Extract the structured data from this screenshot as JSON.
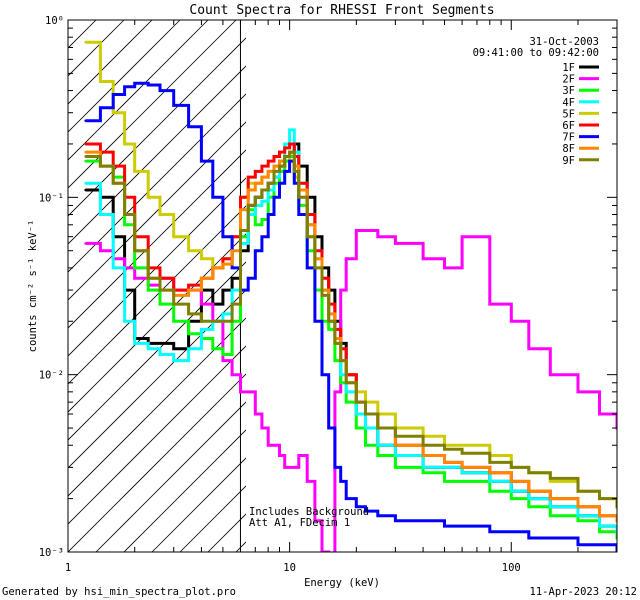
{
  "chart_data": {
    "type": "line",
    "title": "Count Spectra for RHESSI Front Segments",
    "xlabel": "Energy (keV)",
    "ylabel": "counts cm⁻² s⁻¹ keV⁻¹",
    "x_scale": "log",
    "y_scale": "log",
    "xlim": [
      1,
      300
    ],
    "ylim": [
      0.001,
      1.0
    ],
    "x_tick_labels": [
      {
        "value": 1,
        "label": "1"
      },
      {
        "value": 10,
        "label": "10"
      },
      {
        "value": 100,
        "label": "100"
      }
    ],
    "y_tick_labels": [
      {
        "value": 1,
        "label": "10⁰"
      },
      {
        "value": 0.1,
        "label": "10⁻¹"
      },
      {
        "value": 0.01,
        "label": "10⁻²"
      },
      {
        "value": 0.001,
        "label": "10⁻³"
      }
    ],
    "date": "31-Oct-2003",
    "time_range": "09:41:00 to 09:42:00",
    "annotation_lines": [
      "Includes Background",
      "Att A1, FDecim 1"
    ],
    "hatched_region_max_energy": 6,
    "legend_position": "top-right",
    "series": [
      {
        "name": "1F",
        "color": "#000000",
        "x": [
          1.2,
          1.4,
          1.6,
          1.8,
          2.0,
          2.3,
          2.6,
          3.0,
          3.5,
          4.0,
          4.5,
          5.0,
          5.5,
          6.0,
          6.5,
          7.0,
          7.5,
          8.0,
          8.5,
          9.0,
          9.5,
          10.0,
          10.5,
          11.0,
          12.0,
          13.0,
          14.0,
          15.0,
          16.0,
          17.0,
          18.0,
          20.0,
          22.0,
          25.0,
          30.0,
          40.0,
          50.0,
          60.0,
          80.0,
          100.0,
          120.0,
          150.0,
          200.0,
          250.0,
          300.0
        ],
        "values": [
          0.11,
          0.1,
          0.06,
          0.03,
          0.016,
          0.015,
          0.015,
          0.014,
          0.02,
          0.03,
          0.025,
          0.03,
          0.035,
          0.05,
          0.09,
          0.1,
          0.11,
          0.12,
          0.13,
          0.15,
          0.17,
          0.18,
          0.2,
          0.15,
          0.1,
          0.06,
          0.04,
          0.03,
          0.02,
          0.015,
          0.01,
          0.006,
          0.005,
          0.004,
          0.0035,
          0.003,
          0.003,
          0.0028,
          0.0025,
          0.0022,
          0.002,
          0.0018,
          0.0016,
          0.0014,
          0.0013
        ]
      },
      {
        "name": "2F",
        "color": "#ff00ff",
        "x": [
          1.2,
          1.4,
          1.6,
          1.8,
          2.0,
          2.3,
          2.6,
          3.0,
          3.5,
          4.0,
          4.5,
          5.0,
          5.5,
          6.0,
          6.5,
          7.0,
          7.5,
          8.0,
          8.5,
          9.0,
          9.5,
          10.0,
          10.5,
          11.0,
          12.0,
          13.0,
          14.0,
          15.0,
          16.0,
          17.0,
          18.0,
          20.0,
          22.0,
          25.0,
          30.0,
          40.0,
          50.0,
          60.0,
          80.0,
          100.0,
          120.0,
          150.0,
          200.0,
          250.0,
          300.0
        ],
        "values": [
          0.055,
          0.05,
          0.045,
          0.04,
          0.035,
          0.032,
          0.035,
          0.03,
          0.03,
          0.025,
          0.02,
          0.012,
          0.01,
          0.008,
          0.008,
          0.006,
          0.005,
          0.004,
          0.004,
          0.0035,
          0.003,
          0.003,
          0.003,
          0.0035,
          0.0025,
          0.0015,
          0.001,
          0.0009,
          0.008,
          0.03,
          0.045,
          0.065,
          0.065,
          0.06,
          0.055,
          0.045,
          0.04,
          0.06,
          0.025,
          0.02,
          0.014,
          0.01,
          0.008,
          0.006,
          0.005
        ]
      },
      {
        "name": "3F",
        "color": "#00ff00",
        "x": [
          1.2,
          1.4,
          1.6,
          1.8,
          2.0,
          2.3,
          2.6,
          3.0,
          3.5,
          4.0,
          4.5,
          5.0,
          5.5,
          6.0,
          6.5,
          7.0,
          7.5,
          8.0,
          8.5,
          9.0,
          9.5,
          10.0,
          10.5,
          11.0,
          12.0,
          13.0,
          14.0,
          15.0,
          16.0,
          17.0,
          18.0,
          20.0,
          22.0,
          25.0,
          30.0,
          40.0,
          50.0,
          60.0,
          80.0,
          100.0,
          120.0,
          150.0,
          200.0,
          250.0,
          300.0
        ],
        "values": [
          0.16,
          0.15,
          0.13,
          0.07,
          0.04,
          0.03,
          0.025,
          0.02,
          0.017,
          0.016,
          0.014,
          0.013,
          0.02,
          0.06,
          0.085,
          0.07,
          0.075,
          0.1,
          0.12,
          0.14,
          0.16,
          0.17,
          0.13,
          0.09,
          0.05,
          0.03,
          0.02,
          0.018,
          0.012,
          0.009,
          0.007,
          0.005,
          0.004,
          0.0035,
          0.003,
          0.0028,
          0.0025,
          0.0025,
          0.0022,
          0.002,
          0.0018,
          0.0016,
          0.0015,
          0.0013,
          0.0012
        ]
      },
      {
        "name": "4F",
        "color": "#00ffff",
        "x": [
          1.2,
          1.4,
          1.6,
          1.8,
          2.0,
          2.3,
          2.6,
          3.0,
          3.5,
          4.0,
          4.5,
          5.0,
          5.5,
          6.0,
          6.5,
          7.0,
          7.5,
          8.0,
          8.5,
          9.0,
          9.5,
          10.0,
          10.5,
          11.0,
          12.0,
          13.0,
          14.0,
          15.0,
          16.0,
          17.0,
          18.0,
          20.0,
          22.0,
          25.0,
          30.0,
          40.0,
          50.0,
          60.0,
          80.0,
          100.0,
          120.0,
          150.0,
          200.0,
          250.0,
          300.0
        ],
        "values": [
          0.12,
          0.08,
          0.04,
          0.02,
          0.015,
          0.014,
          0.013,
          0.012,
          0.014,
          0.018,
          0.02,
          0.022,
          0.03,
          0.055,
          0.08,
          0.09,
          0.095,
          0.11,
          0.13,
          0.16,
          0.2,
          0.24,
          0.18,
          0.12,
          0.07,
          0.045,
          0.03,
          0.02,
          0.015,
          0.01,
          0.008,
          0.006,
          0.005,
          0.004,
          0.0035,
          0.003,
          0.003,
          0.0028,
          0.0025,
          0.0022,
          0.002,
          0.0018,
          0.0016,
          0.0014,
          0.0013
        ]
      },
      {
        "name": "5F",
        "color": "#cccc00",
        "x": [
          1.2,
          1.4,
          1.6,
          1.8,
          2.0,
          2.3,
          2.6,
          3.0,
          3.5,
          4.0,
          4.5,
          5.0,
          5.5,
          6.0,
          6.5,
          7.0,
          7.5,
          8.0,
          8.5,
          9.0,
          9.5,
          10.0,
          10.5,
          11.0,
          12.0,
          13.0,
          14.0,
          15.0,
          16.0,
          17.0,
          18.0,
          20.0,
          22.0,
          25.0,
          30.0,
          40.0,
          50.0,
          60.0,
          80.0,
          100.0,
          120.0,
          150.0,
          200.0,
          250.0,
          300.0
        ],
        "values": [
          0.75,
          0.45,
          0.3,
          0.2,
          0.14,
          0.1,
          0.08,
          0.06,
          0.05,
          0.045,
          0.04,
          0.045,
          0.06,
          0.1,
          0.12,
          0.12,
          0.13,
          0.14,
          0.15,
          0.16,
          0.17,
          0.16,
          0.13,
          0.1,
          0.06,
          0.04,
          0.03,
          0.02,
          0.015,
          0.012,
          0.01,
          0.008,
          0.007,
          0.006,
          0.005,
          0.0045,
          0.004,
          0.004,
          0.0035,
          0.003,
          0.0028,
          0.0025,
          0.0022,
          0.002,
          0.0018
        ]
      },
      {
        "name": "6F",
        "color": "#ff0000",
        "x": [
          1.2,
          1.4,
          1.6,
          1.8,
          2.0,
          2.3,
          2.6,
          3.0,
          3.5,
          4.0,
          4.5,
          5.0,
          5.5,
          6.0,
          6.5,
          7.0,
          7.5,
          8.0,
          8.5,
          9.0,
          9.5,
          10.0,
          10.5,
          11.0,
          12.0,
          13.0,
          14.0,
          15.0,
          16.0,
          17.0,
          18.0,
          20.0,
          22.0,
          25.0,
          30.0,
          40.0,
          50.0,
          60.0,
          80.0,
          100.0,
          120.0,
          150.0,
          200.0,
          250.0,
          300.0
        ],
        "values": [
          0.2,
          0.18,
          0.15,
          0.1,
          0.06,
          0.04,
          0.035,
          0.03,
          0.032,
          0.035,
          0.04,
          0.045,
          0.06,
          0.1,
          0.13,
          0.14,
          0.15,
          0.16,
          0.17,
          0.18,
          0.19,
          0.2,
          0.17,
          0.12,
          0.08,
          0.05,
          0.035,
          0.025,
          0.018,
          0.014,
          0.01,
          0.007,
          0.006,
          0.005,
          0.004,
          0.0035,
          0.0032,
          0.003,
          0.0028,
          0.0025,
          0.0022,
          0.002,
          0.0018,
          0.0016,
          0.0015
        ]
      },
      {
        "name": "7F",
        "color": "#0000ff",
        "x": [
          1.2,
          1.4,
          1.6,
          1.8,
          2.0,
          2.3,
          2.6,
          3.0,
          3.5,
          4.0,
          4.5,
          5.0,
          5.5,
          6.0,
          6.5,
          7.0,
          7.5,
          8.0,
          8.5,
          9.0,
          9.5,
          10.0,
          10.5,
          11.0,
          12.0,
          13.0,
          14.0,
          15.0,
          16.0,
          17.0,
          18.0,
          20.0,
          22.0,
          25.0,
          30.0,
          40.0,
          50.0,
          60.0,
          80.0,
          100.0,
          120.0,
          150.0,
          200.0,
          250.0,
          300.0
        ],
        "values": [
          0.27,
          0.32,
          0.38,
          0.42,
          0.44,
          0.43,
          0.4,
          0.33,
          0.25,
          0.16,
          0.1,
          0.06,
          0.04,
          0.03,
          0.035,
          0.05,
          0.06,
          0.08,
          0.1,
          0.12,
          0.14,
          0.16,
          0.12,
          0.08,
          0.04,
          0.02,
          0.01,
          0.005,
          0.003,
          0.0025,
          0.002,
          0.0018,
          0.0017,
          0.0016,
          0.0015,
          0.0015,
          0.0014,
          0.0014,
          0.0013,
          0.0013,
          0.0012,
          0.0012,
          0.0011,
          0.0011,
          0.001
        ]
      },
      {
        "name": "8F",
        "color": "#ff8800",
        "x": [
          1.2,
          1.4,
          1.6,
          1.8,
          2.0,
          2.3,
          2.6,
          3.0,
          3.5,
          4.0,
          4.5,
          5.0,
          5.5,
          6.0,
          6.5,
          7.0,
          7.5,
          8.0,
          8.5,
          9.0,
          9.5,
          10.0,
          10.5,
          11.0,
          12.0,
          13.0,
          14.0,
          15.0,
          16.0,
          17.0,
          18.0,
          20.0,
          22.0,
          25.0,
          30.0,
          40.0,
          50.0,
          60.0,
          80.0,
          100.0,
          120.0,
          150.0,
          200.0,
          250.0,
          300.0
        ],
        "values": [
          0.18,
          0.15,
          0.12,
          0.08,
          0.05,
          0.035,
          0.03,
          0.028,
          0.03,
          0.035,
          0.04,
          0.042,
          0.05,
          0.085,
          0.11,
          0.12,
          0.13,
          0.14,
          0.15,
          0.16,
          0.17,
          0.18,
          0.15,
          0.11,
          0.07,
          0.045,
          0.03,
          0.022,
          0.016,
          0.012,
          0.009,
          0.007,
          0.006,
          0.005,
          0.004,
          0.0035,
          0.0032,
          0.003,
          0.0028,
          0.0025,
          0.0022,
          0.002,
          0.0018,
          0.0016,
          0.0015
        ]
      },
      {
        "name": "9F",
        "color": "#808000",
        "x": [
          1.2,
          1.4,
          1.6,
          1.8,
          2.0,
          2.3,
          2.6,
          3.0,
          3.5,
          4.0,
          4.5,
          5.0,
          5.5,
          6.0,
          6.5,
          7.0,
          7.5,
          8.0,
          8.5,
          9.0,
          9.5,
          10.0,
          10.5,
          11.0,
          12.0,
          13.0,
          14.0,
          15.0,
          16.0,
          17.0,
          18.0,
          20.0,
          22.0,
          25.0,
          30.0,
          40.0,
          50.0,
          60.0,
          80.0,
          100.0,
          120.0,
          150.0,
          200.0,
          250.0,
          300.0
        ],
        "values": [
          0.17,
          0.15,
          0.12,
          0.08,
          0.05,
          0.035,
          0.03,
          0.025,
          0.022,
          0.02,
          0.02,
          0.02,
          0.025,
          0.065,
          0.09,
          0.1,
          0.11,
          0.12,
          0.14,
          0.15,
          0.17,
          0.18,
          0.14,
          0.1,
          0.06,
          0.04,
          0.028,
          0.02,
          0.015,
          0.012,
          0.009,
          0.007,
          0.006,
          0.005,
          0.0045,
          0.004,
          0.0038,
          0.0036,
          0.0032,
          0.003,
          0.0028,
          0.0026,
          0.0022,
          0.002,
          0.0018
        ]
      }
    ]
  },
  "footer": {
    "left": "Generated by hsi_min_spectra_plot.pro",
    "right": "11-Apr-2023 20:12"
  }
}
